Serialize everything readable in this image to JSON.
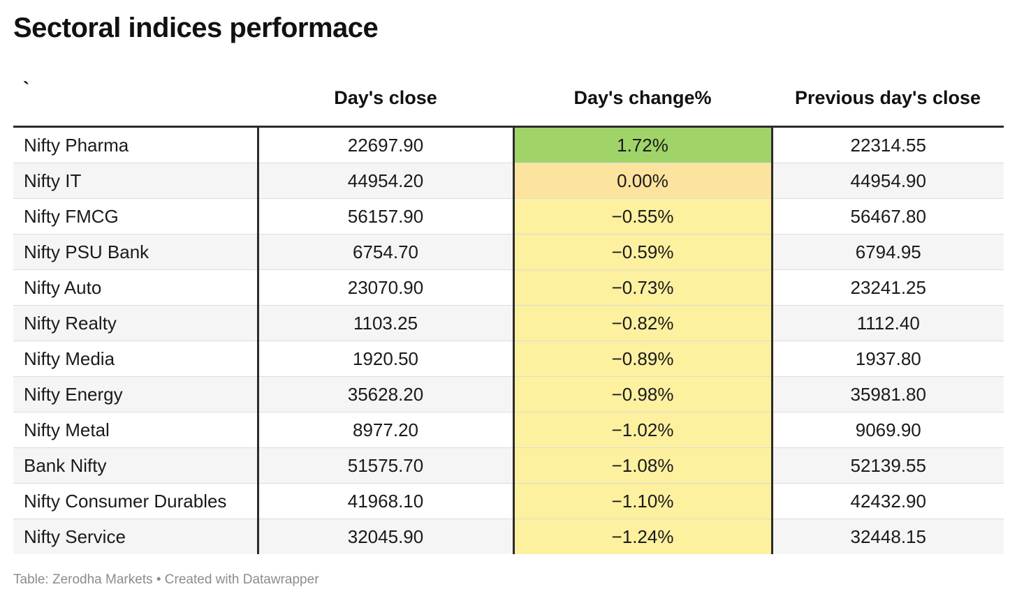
{
  "title": "Sectoral indices performace",
  "columns": [
    "`",
    "Day's close",
    "Day's change%",
    "Previous day's close"
  ],
  "rows": [
    {
      "name": "Nifty Pharma",
      "close": "22697.90",
      "change": "1.72%",
      "prev": "22314.55"
    },
    {
      "name": "Nifty IT",
      "close": "44954.20",
      "change": "0.00%",
      "prev": "44954.90"
    },
    {
      "name": "Nifty FMCG",
      "close": "56157.90",
      "change": "−0.55%",
      "prev": "56467.80"
    },
    {
      "name": "Nifty PSU Bank",
      "close": "6754.70",
      "change": "−0.59%",
      "prev": "6794.95"
    },
    {
      "name": "Nifty Auto",
      "close": "23070.90",
      "change": "−0.73%",
      "prev": "23241.25"
    },
    {
      "name": "Nifty Realty",
      "close": "1103.25",
      "change": "−0.82%",
      "prev": "1112.40"
    },
    {
      "name": "Nifty Media",
      "close": "1920.50",
      "change": "−0.89%",
      "prev": "1937.80"
    },
    {
      "name": "Nifty Energy",
      "close": "35628.20",
      "change": "−0.98%",
      "prev": "35981.80"
    },
    {
      "name": "Nifty Metal",
      "close": "8977.20",
      "change": "−1.02%",
      "prev": "9069.90"
    },
    {
      "name": "Bank Nifty",
      "close": "51575.70",
      "change": "−1.08%",
      "prev": "52139.55"
    },
    {
      "name": "Nifty Consumer Durables",
      "close": "41968.10",
      "change": "−1.10%",
      "prev": "42432.90"
    },
    {
      "name": "Nifty Service",
      "close": "32045.90",
      "change": "−1.24%",
      "prev": "32448.15"
    }
  ],
  "colors": {
    "positive": "#a0d468",
    "zero": "#fde49e",
    "negative": "#fdf09f",
    "divider": "#2b2b2b"
  },
  "chart_data": {
    "type": "table",
    "columns": [
      "`",
      "Day's close",
      "Day's change%",
      "Previous day's close"
    ],
    "rows": [
      [
        "Nifty Pharma",
        22697.9,
        1.72,
        22314.55
      ],
      [
        "Nifty IT",
        44954.2,
        0.0,
        44954.9
      ],
      [
        "Nifty FMCG",
        56157.9,
        -0.55,
        56467.8
      ],
      [
        "Nifty PSU Bank",
        6754.7,
        -0.59,
        6794.95
      ],
      [
        "Nifty Auto",
        23070.9,
        -0.73,
        23241.25
      ],
      [
        "Nifty Realty",
        1103.25,
        -0.82,
        1112.4
      ],
      [
        "Nifty Media",
        1920.5,
        -0.89,
        1937.8
      ],
      [
        "Nifty Energy",
        35628.2,
        -0.98,
        35981.8
      ],
      [
        "Nifty Metal",
        8977.2,
        -1.02,
        9069.9
      ],
      [
        "Bank Nifty",
        51575.7,
        -1.08,
        52139.55
      ],
      [
        "Nifty Consumer Durables",
        41968.1,
        -1.1,
        42432.9
      ],
      [
        "Nifty Service",
        32045.9,
        -1.24,
        32448.15
      ]
    ]
  },
  "footer": "Table: Zerodha Markets • Created with Datawrapper"
}
